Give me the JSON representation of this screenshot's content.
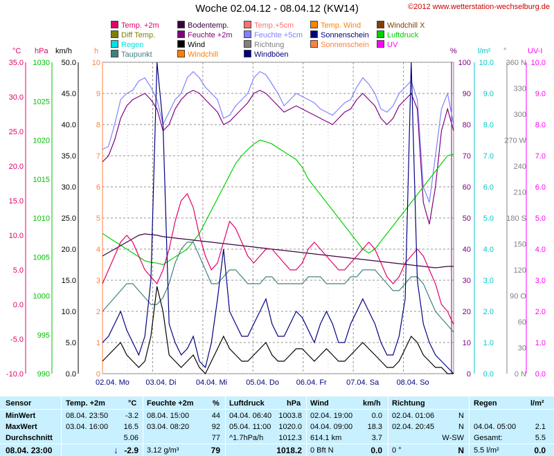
{
  "header": {
    "title": "Woche 02.04.12 - 08.04.12 (KW14)",
    "copyright": "©2012 www.wetterstation-wechselburg.de"
  },
  "units": {
    "temp": "°C",
    "pressure": "hPa",
    "speed": "km/h",
    "hours": "h",
    "percent": "%",
    "rain": "l/m²",
    "degree": "°",
    "uv": "UV-I"
  },
  "legend": [
    {
      "label": "Temp. +2m",
      "color": "#e0006a"
    },
    {
      "label": "Bodentemp.",
      "color": "#3a0040"
    },
    {
      "label": "Temp.+5cm",
      "color": "#ff7070"
    },
    {
      "label": "Temp. Wind",
      "color": "#ff8000"
    },
    {
      "label": "Windchill X",
      "color": "#804000"
    },
    {
      "label": "Diff Temp.",
      "color": "#808000"
    },
    {
      "label": "Feuchte +2m",
      "color": "#800080"
    },
    {
      "label": "Feuchte +5cm",
      "color": "#8080ff"
    },
    {
      "label": "Sonnenschein",
      "color": "#000080"
    },
    {
      "label": "Luftdruck",
      "color": "#00d000"
    },
    {
      "label": "Regen",
      "color": "#00e0e0"
    },
    {
      "label": "Wind",
      "color": "#000000"
    },
    {
      "label": "Richtung",
      "color": "#808080"
    },
    {
      "label": "Sonnenschein",
      "color": "#ff8040"
    },
    {
      "label": "UV",
      "color": "#ff00ff"
    },
    {
      "label": "Taupunkt",
      "color": "#408080"
    },
    {
      "label": "Windchill",
      "color": "#ff8000"
    },
    {
      "label": "Windböen",
      "color": "#000080"
    }
  ],
  "chart_data": {
    "type": "line",
    "title": "Woche 02.04.12 - 08.04.12 (KW14)",
    "x_labels": [
      "02.04. Mo",
      "03.04. Di",
      "04.04. Mi",
      "05.04. Do",
      "06.04. Fr",
      "07.04. Sa",
      "08.04. So"
    ],
    "axes": {
      "temp_c": {
        "ticks": [
          "35.0",
          "30.0",
          "25.0",
          "20.0",
          "15.0",
          "10.0",
          "5.0",
          "0.0",
          "-5.0",
          "-10.0"
        ],
        "color": "#e0006a",
        "ylim": [
          -10,
          35
        ]
      },
      "pressure_hpa": {
        "ticks": [
          "1030",
          "1025",
          "1020",
          "1015",
          "1010",
          "1005",
          "1000",
          "995",
          "990"
        ],
        "color": "#00c000",
        "ylim": [
          990,
          1030
        ]
      },
      "wind_kmh": {
        "ticks": [
          "50.0",
          "45.0",
          "40.0",
          "35.0",
          "30.0",
          "25.0",
          "20.0",
          "15.0",
          "10.0",
          "5.0",
          "0.0"
        ],
        "color": "#000000",
        "ylim": [
          0,
          50
        ]
      },
      "sun_h": {
        "ticks": [
          "10",
          "9",
          "8",
          "7",
          "6",
          "5",
          "4",
          "3",
          "2",
          "1",
          "0"
        ],
        "color": "#ff8040",
        "ylim": [
          0,
          10
        ]
      },
      "humidity_pct": {
        "ticks": [
          "100",
          "90",
          "80",
          "70",
          "60",
          "50",
          "40",
          "30",
          "20",
          "10",
          "0"
        ],
        "color": "#800080",
        "ylim": [
          0,
          100
        ]
      },
      "rain_lm2": {
        "ticks": [
          "10.0",
          "9.0",
          "8.0",
          "7.0",
          "6.0",
          "5.0",
          "4.0",
          "3.0",
          "2.0",
          "1.0",
          "0.0"
        ],
        "color": "#00c8c8",
        "ylim": [
          0,
          10
        ]
      },
      "direction_deg": {
        "ticks": [
          "360 N",
          "330",
          "300",
          "270 W",
          "240",
          "210",
          "180 S",
          "150",
          "120",
          "90 O",
          "60",
          "30",
          "0 N"
        ],
        "color": "#808080",
        "ylim": [
          0,
          360
        ]
      },
      "uv_i": {
        "ticks": [
          "10.0",
          "9.0",
          "8.0",
          "7.0",
          "6.0",
          "5.0",
          "4.0",
          "3.0",
          "2.0",
          "1.0",
          "0.0"
        ],
        "color": "#ff00ff",
        "ylim": [
          0,
          10
        ]
      }
    },
    "series": [
      {
        "name": "Feuchte +5cm",
        "color": "#8080ff",
        "values": [
          72,
          73,
          80,
          88,
          90,
          91,
          94,
          95,
          92,
          88,
          80,
          84,
          88,
          90,
          95,
          97,
          95,
          92,
          90,
          88,
          82,
          83,
          86,
          88,
          90,
          95,
          97,
          96,
          93,
          90,
          86,
          88,
          90,
          89,
          88,
          87,
          85,
          84,
          83,
          85,
          87,
          88,
          92,
          95,
          93,
          90,
          85,
          84,
          86,
          90,
          92,
          94,
          88,
          60,
          55,
          70,
          85,
          90,
          80
        ]
      },
      {
        "name": "Feuchte +2m",
        "color": "#800080",
        "values": [
          68,
          70,
          75,
          82,
          86,
          88,
          89,
          90,
          88,
          85,
          78,
          80,
          85,
          88,
          90,
          91,
          90,
          88,
          86,
          84,
          80,
          81,
          83,
          85,
          87,
          90,
          91,
          90,
          88,
          86,
          84,
          85,
          86,
          85,
          84,
          83,
          82,
          81,
          80,
          82,
          84,
          85,
          88,
          90,
          88,
          86,
          82,
          80,
          82,
          86,
          88,
          90,
          85,
          55,
          48,
          60,
          78,
          85,
          78
        ]
      },
      {
        "name": "Luftdruck",
        "color": "#00d000",
        "values": [
          1008,
          1007.5,
          1007,
          1006.5,
          1006,
          1005.5,
          1005,
          1004.5,
          1004.3,
          1004.2,
          1004,
          1004.5,
          1005,
          1005.5,
          1006,
          1007,
          1008,
          1009.5,
          1011,
          1012.5,
          1014,
          1015.5,
          1017,
          1018,
          1018.8,
          1019.5,
          1020,
          1019.8,
          1019.5,
          1019,
          1018.5,
          1018,
          1017.5,
          1016.5,
          1015,
          1014,
          1013,
          1012,
          1011,
          1010,
          1009,
          1008,
          1007,
          1006,
          1005.5,
          1006,
          1007,
          1008,
          1009,
          1010,
          1011,
          1012,
          1013,
          1014,
          1015,
          1016,
          1017,
          1018,
          1018.2
        ]
      },
      {
        "name": "Bodentemp.",
        "color": "#3a0040",
        "values": [
          7,
          7.5,
          8,
          8.5,
          9,
          9.5,
          10,
          10.2,
          10.1,
          10,
          9.8,
          9.7,
          9.6,
          9.5,
          9.4,
          9.3,
          9.2,
          9.1,
          9,
          8.9,
          8.8,
          8.7,
          8.6,
          8.5,
          8.4,
          8.3,
          8.2,
          8.1,
          8,
          7.9,
          7.8,
          7.7,
          7.6,
          7.5,
          7.4,
          7.3,
          7.2,
          7.1,
          7,
          6.9,
          6.8,
          6.7,
          6.6,
          6.5,
          6.4,
          6.3,
          6.2,
          6.1,
          6,
          5.9,
          5.8,
          5.7,
          5.6,
          5.5,
          5.4,
          5.3,
          5.4,
          5.5,
          5.5
        ]
      },
      {
        "name": "Temp. +2m",
        "color": "#e0006a",
        "values": [
          3,
          5,
          7,
          9,
          10,
          9,
          7,
          5,
          4,
          3,
          5,
          8,
          12,
          15,
          16,
          14,
          10,
          7,
          5,
          6,
          9,
          12,
          11,
          9,
          7,
          6,
          7,
          8,
          8,
          7,
          6,
          5,
          5,
          6,
          8,
          9,
          8,
          7,
          6,
          5,
          5,
          6,
          7,
          8,
          9,
          8,
          6,
          4,
          3,
          4,
          6,
          7,
          8,
          7,
          5,
          3,
          0,
          -1,
          -2.9
        ]
      },
      {
        "name": "Taupunkt",
        "color": "#408080",
        "values": [
          -1,
          0,
          1,
          2,
          3,
          3,
          2,
          1,
          0,
          0,
          1,
          3,
          6,
          8,
          9,
          9,
          7,
          5,
          3,
          3,
          4,
          5,
          5,
          4,
          3,
          3,
          3,
          4,
          4,
          3,
          3,
          3,
          3,
          3,
          4,
          4,
          4,
          3,
          3,
          3,
          3,
          4,
          4,
          5,
          5,
          5,
          4,
          3,
          2,
          2,
          3,
          4,
          4,
          3,
          1,
          -1,
          -2,
          -3,
          -4
        ]
      },
      {
        "name": "Wind",
        "color": "#000000",
        "values": [
          2,
          3,
          4,
          5,
          3,
          2,
          1,
          2,
          6,
          14,
          10,
          3,
          2,
          1,
          2,
          3,
          1,
          0,
          2,
          4,
          6,
          4,
          3,
          2,
          2,
          3,
          4,
          5,
          3,
          2,
          2,
          3,
          4,
          4,
          3,
          2,
          3,
          4,
          3,
          2,
          2,
          3,
          4,
          5,
          4,
          3,
          2,
          1,
          1,
          2,
          4,
          6,
          5,
          3,
          2,
          1,
          1,
          0,
          0
        ]
      },
      {
        "name": "Windböen",
        "color": "#000080",
        "values": [
          5,
          6,
          8,
          10,
          7,
          5,
          3,
          6,
          15,
          50,
          40,
          8,
          5,
          3,
          4,
          6,
          2,
          1,
          5,
          12,
          20,
          10,
          8,
          6,
          6,
          8,
          10,
          12,
          8,
          6,
          6,
          8,
          10,
          9,
          7,
          5,
          8,
          10,
          8,
          5,
          5,
          8,
          10,
          12,
          10,
          8,
          5,
          3,
          3,
          6,
          12,
          50,
          15,
          8,
          5,
          3,
          2,
          1,
          0
        ]
      }
    ]
  },
  "stats": {
    "headers": {
      "sensor": "Sensor",
      "temp": "Temp. +2m",
      "temp_unit": "°C",
      "hum": "Feuchte +2m",
      "hum_unit": "%",
      "press": "Luftdruck",
      "press_unit": "hPa",
      "wind": "Wind",
      "wind_unit": "km/h",
      "dir": "Richtung",
      "rain": "Regen",
      "rain_unit": "l/m²"
    },
    "rows": {
      "min": {
        "label": "MinWert",
        "temp_date": "08.04.  23:50",
        "temp_val": "-3.2",
        "hum_date": "08.04.  15:00",
        "hum_val": "44",
        "press_date": "04.04.  06:40",
        "press_val": "1003.8",
        "wind_date": "02.04.  19:00",
        "wind_val": "0.0",
        "dir_date": "02.04.  01:06",
        "dir_val": "N"
      },
      "max": {
        "label": "MaxWert",
        "temp_date": "03.04.  16:00",
        "temp_val": "16.5",
        "hum_date": "03.04.  08:20",
        "hum_val": "92",
        "press_date": "05.04.  11:00",
        "press_val": "1020.0",
        "wind_date": "04.04.  09:00",
        "wind_val": "18.3",
        "dir_date": "02.04.  20:45",
        "dir_val": "N",
        "rain_date": "04.04.  05:00",
        "rain_val": "2.1"
      },
      "avg": {
        "label": "Durchschnitt",
        "temp_val": "5.06",
        "hum_val": "77",
        "press_trend": "^1.7hPa/h",
        "press_val": "1012.3",
        "wind_dist": "614.1 km",
        "wind_val": "3.7",
        "dir_val": "W-SW",
        "rain_label": "Gesamt:",
        "rain_val": "5.5"
      },
      "current": {
        "label": "08.04.  23:00",
        "temp_arrow": "↓",
        "temp_val": "-2.9",
        "hum_abs": "3.12 g/m³",
        "hum_val": "79",
        "press_val": "1018.2",
        "wind_bft": "0 Bft N",
        "wind_val": "0.0",
        "dir_deg": "0 °",
        "dir_val": "N",
        "rain_day": "5.5 l/m²",
        "rain_val": "0.0"
      }
    }
  }
}
